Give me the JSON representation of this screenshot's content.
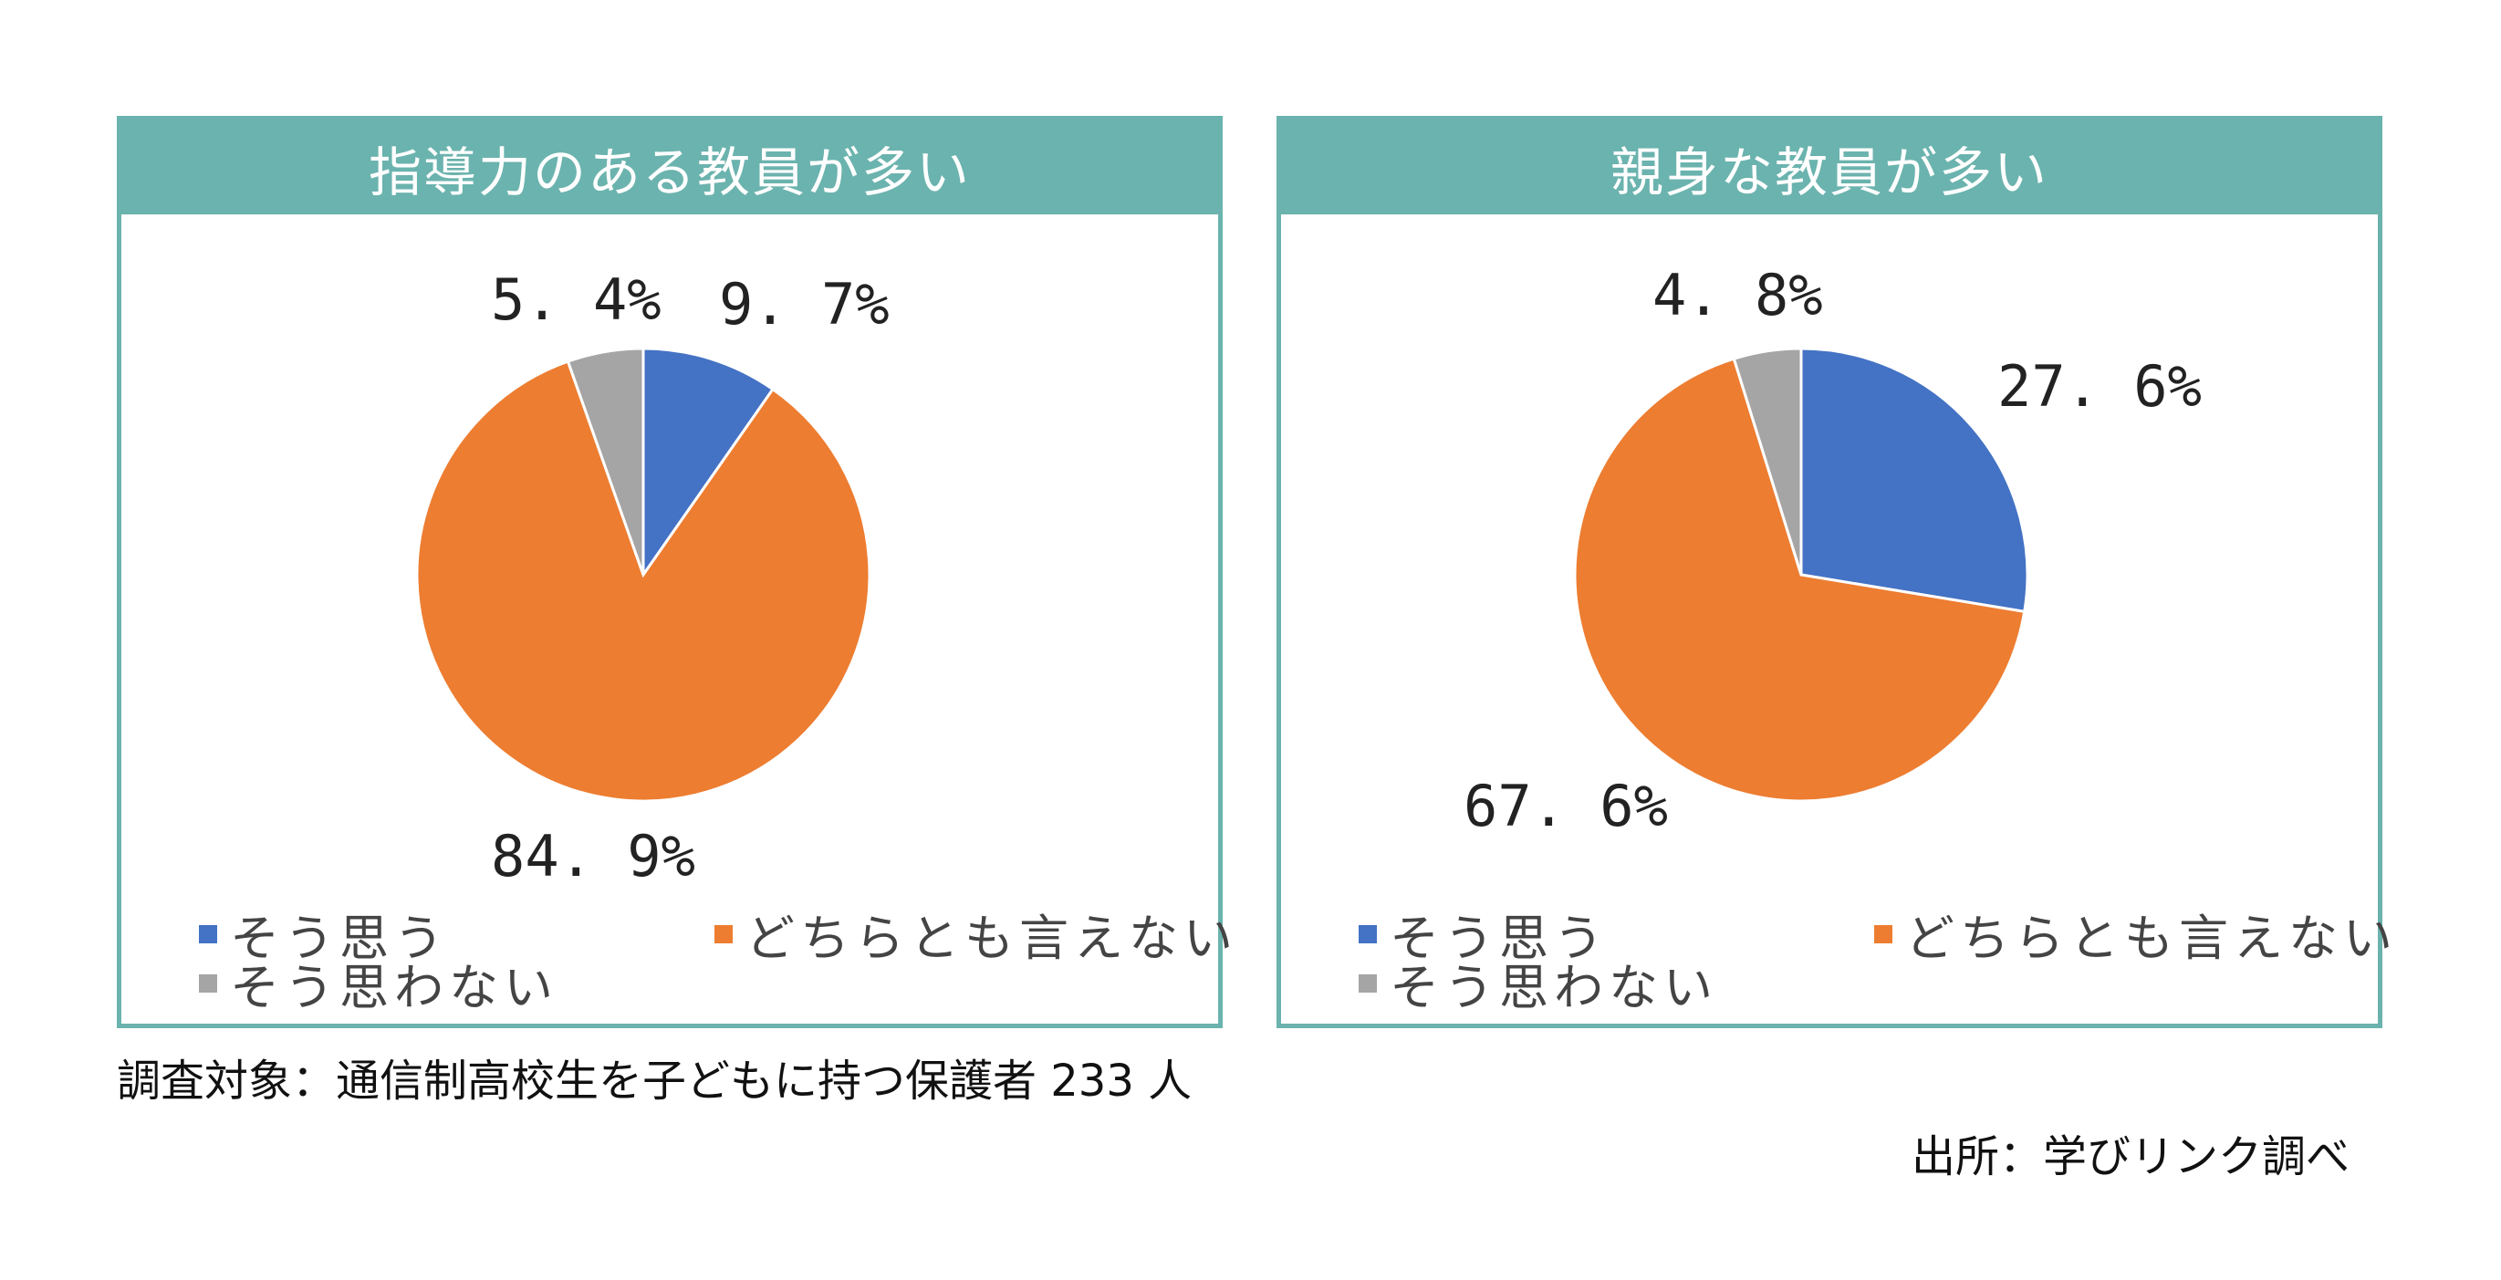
{
  "colors": {
    "agree": "#4472c4",
    "neutral": "#ed7d31",
    "disagree": "#a5a5a5",
    "header": "#6bb3ae"
  },
  "legend": {
    "agree": "そう思う",
    "neutral": "どちらとも言えない",
    "disagree": "そう思わない"
  },
  "chart_data": [
    {
      "type": "pie",
      "title": "指導力のある教員が多い",
      "categories": [
        "そう思う",
        "どちらとも言えない",
        "そう思わない"
      ],
      "values": [
        9.7,
        84.9,
        5.4
      ],
      "labels": [
        "9. 7%",
        "84. 9%",
        "5. 4%"
      ],
      "legend_position": "bottom"
    },
    {
      "type": "pie",
      "title": "親身な教員が多い",
      "categories": [
        "そう思う",
        "どちらとも言えない",
        "そう思わない"
      ],
      "values": [
        27.6,
        67.6,
        4.8
      ],
      "labels": [
        "27. 6%",
        "67. 6%",
        "4. 8%"
      ],
      "legend_position": "bottom"
    }
  ],
  "footnote": "調査対象：通信制高校生を子どもに持つ保護者 233 人",
  "source": "出所：学びリンク調べ"
}
